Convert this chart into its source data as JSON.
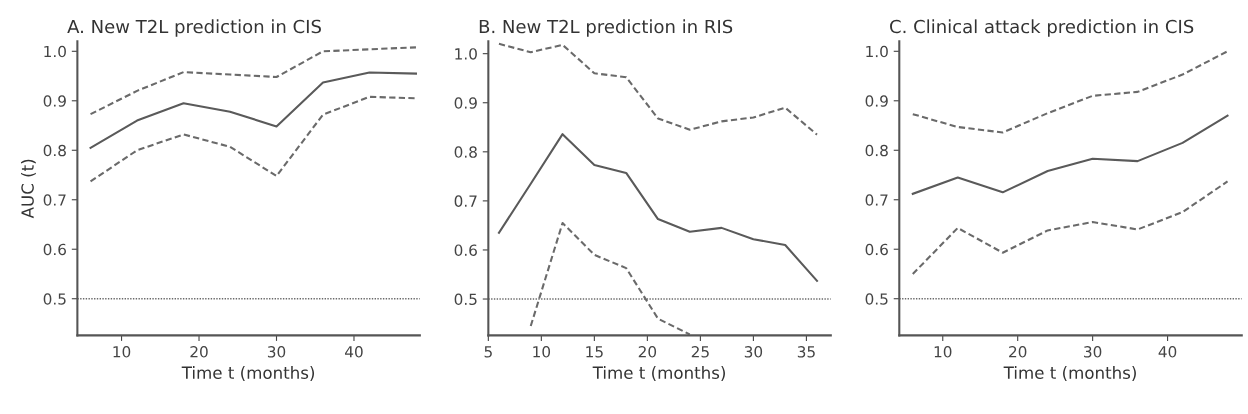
{
  "chart_data": [
    {
      "type": "line",
      "title": "A. New T2L prediction in CIS",
      "xlabel": "Time t (months)",
      "ylabel": "AUC (t)",
      "x": [
        6,
        12,
        18,
        24,
        30,
        36,
        42,
        48
      ],
      "xlim": [
        4.3,
        48.5
      ],
      "xticks": [
        10,
        20,
        30,
        40
      ],
      "ylim": [
        0.426,
        1.02
      ],
      "yticks": [
        {
          "value": 0.5,
          "label": "0.5"
        },
        {
          "value": 0.6,
          "label": "0.6"
        },
        {
          "value": 0.7,
          "label": "0.7"
        },
        {
          "value": 0.8,
          "label": "0.8"
        },
        {
          "value": 0.9,
          "label": "0.9"
        },
        {
          "value": 1.0,
          "label": "1.0"
        }
      ],
      "grid": false,
      "legend": false,
      "marker": "none",
      "series": [
        {
          "color": "#5a5a5a",
          "line_style": "solid",
          "values": [
            0.805,
            0.86,
            0.895,
            0.878,
            0.848,
            0.937,
            0.957,
            0.955
          ]
        },
        {
          "color": "#6a6a6a",
          "line_style": "dashed",
          "values": [
            0.873,
            0.92,
            0.958,
            0.953,
            0.948,
            1.0,
            1.004,
            1.008
          ]
        },
        {
          "color": "#6a6a6a",
          "line_style": "dashed",
          "values": [
            0.737,
            0.8,
            0.832,
            0.807,
            0.748,
            0.872,
            0.908,
            0.905
          ]
        }
      ],
      "ref_lines": [
        {
          "axis": "y",
          "value": 0.5,
          "color": "#6a6a6a",
          "line_style": "dotted"
        }
      ]
    },
    {
      "type": "line",
      "title": "B. New T2L prediction in RIS",
      "xlabel": "Time t (months)",
      "x": [
        6,
        9,
        12,
        15,
        18,
        21,
        24,
        27,
        30,
        33,
        36
      ],
      "xlim": [
        5,
        37.3
      ],
      "xticks": [
        5,
        10,
        15,
        20,
        25,
        30,
        35
      ],
      "ylim": [
        0.426,
        1.025
      ],
      "yticks": [
        {
          "value": 0.5,
          "label": "0.5"
        },
        {
          "value": 0.6,
          "label": "0.6"
        },
        {
          "value": 0.7,
          "label": "0.7"
        },
        {
          "value": 0.8,
          "label": "0.8"
        },
        {
          "value": 0.9,
          "label": "0.9"
        },
        {
          "value": 1.0,
          "label": "1.0"
        }
      ],
      "grid": false,
      "legend": false,
      "marker": "none",
      "series": [
        {
          "color": "#5a5a5a",
          "line_style": "solid",
          "values": [
            0.635,
            0.735,
            0.836,
            0.773,
            0.757,
            0.663,
            0.637,
            0.645,
            0.622,
            0.61,
            0.537
          ]
        },
        {
          "color": "#6a6a6a",
          "line_style": "dashed",
          "values": [
            1.02,
            1.003,
            1.018,
            0.96,
            0.952,
            0.868,
            0.845,
            0.862,
            0.87,
            0.89,
            0.835
          ]
        },
        {
          "color": "#6a6a6a",
          "line_style": "dashed",
          "values": [
            null,
            0.445,
            0.655,
            0.59,
            0.563,
            0.46,
            0.428,
            null,
            null,
            null,
            null
          ]
        }
      ],
      "ref_lines": [
        {
          "axis": "y",
          "value": 0.5,
          "color": "#6a6a6a",
          "line_style": "dotted"
        }
      ]
    },
    {
      "type": "line",
      "title": "C. Clinical attack prediction in CIS",
      "xlabel": "Time t (months)",
      "x": [
        6,
        12,
        18,
        24,
        30,
        36,
        42,
        48
      ],
      "xlim": [
        4.2,
        49.9
      ],
      "xticks": [
        10,
        20,
        30,
        40
      ],
      "ylim": [
        0.426,
        1.02
      ],
      "yticks": [
        {
          "value": 0.5,
          "label": "0.5"
        },
        {
          "value": 0.6,
          "label": "0.6"
        },
        {
          "value": 0.7,
          "label": "0.7"
        },
        {
          "value": 0.8,
          "label": "0.8"
        },
        {
          "value": 0.9,
          "label": "0.9"
        },
        {
          "value": 1.0,
          "label": "1.0"
        }
      ],
      "grid": false,
      "legend": false,
      "marker": "none",
      "series": [
        {
          "color": "#5a5a5a",
          "line_style": "solid",
          "values": [
            0.712,
            0.745,
            0.715,
            0.758,
            0.783,
            0.778,
            0.815,
            0.87
          ]
        },
        {
          "color": "#6a6a6a",
          "line_style": "dashed",
          "values": [
            0.873,
            0.847,
            0.836,
            0.875,
            0.91,
            0.918,
            0.953,
            1.0
          ]
        },
        {
          "color": "#6a6a6a",
          "line_style": "dashed",
          "values": [
            0.55,
            0.643,
            0.593,
            0.638,
            0.655,
            0.64,
            0.675,
            0.737
          ]
        }
      ],
      "ref_lines": [
        {
          "axis": "y",
          "value": 0.5,
          "color": "#6a6a6a",
          "line_style": "dotted"
        }
      ]
    }
  ]
}
